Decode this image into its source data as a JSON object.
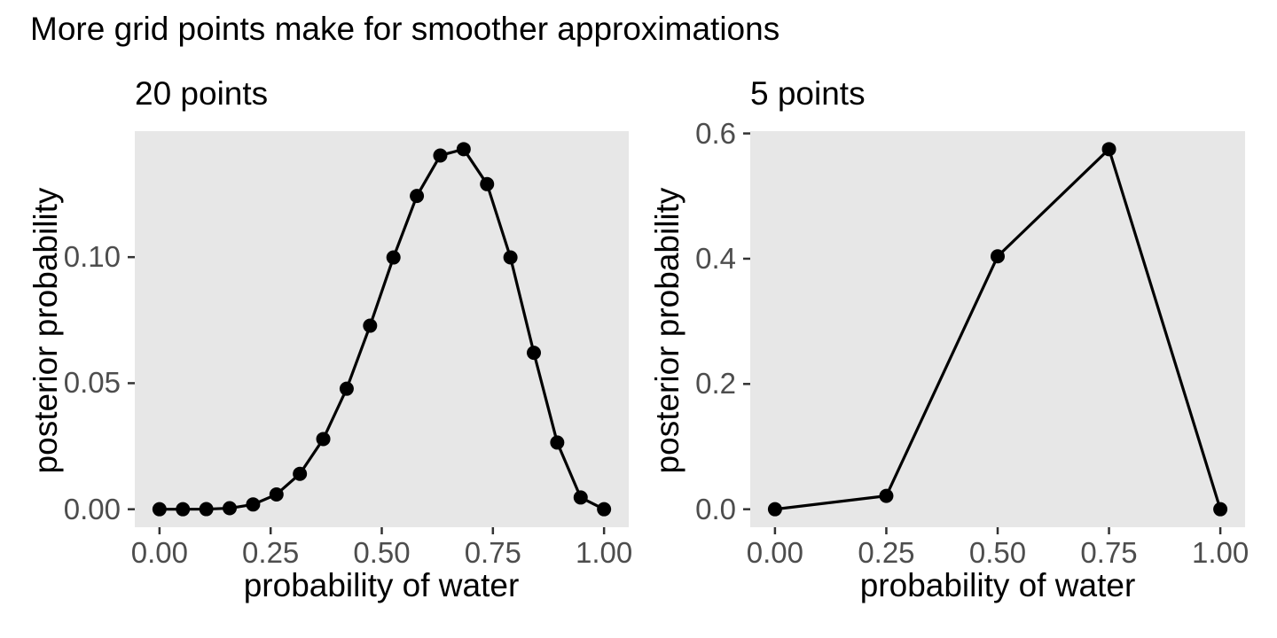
{
  "figure_title": "More grid points make for smoother approximations",
  "style": {
    "page_bg": "#FFFFFF",
    "panel_bg": "#E7E7E7",
    "line_color": "#000000",
    "point_color": "#000000",
    "tick_mark_color": "#333333",
    "tick_label_color": "#4D4D4D",
    "text_color": "#000000"
  },
  "chart_data": [
    {
      "type": "line",
      "title": "20 points",
      "xlabel": "probability of water",
      "ylabel": "posterior probability",
      "grid": "off",
      "legend": "none",
      "marker": "filled-circle",
      "xlim": [
        0,
        1
      ],
      "ylim": [
        0,
        0.142833
      ],
      "x": [
        0,
        0.052632,
        0.105263,
        0.157895,
        0.210526,
        0.263158,
        0.315789,
        0.368421,
        0.421053,
        0.473684,
        0.526316,
        0.578947,
        0.631579,
        0.684211,
        0.736842,
        0.789474,
        0.842105,
        0.894737,
        0.947368,
        1
      ],
      "y": [
        0,
        1e-06,
        4.3e-05,
        0.000409,
        0.001894,
        0.005874,
        0.014043,
        0.027848,
        0.047805,
        0.072808,
        0.099868,
        0.124264,
        0.140317,
        0.142833,
        0.128954,
        0.099884,
        0.062056,
        0.026454,
        0.00466,
        0
      ],
      "x_ticks": {
        "values": [
          0,
          0.25,
          0.5,
          0.75,
          1
        ],
        "labels": [
          "0.00",
          "0.25",
          "0.50",
          "0.75",
          "1.00"
        ]
      },
      "y_ticks": {
        "values": [
          0,
          0.05,
          0.1
        ],
        "labels": [
          "0.00",
          "0.05",
          "0.10"
        ]
      }
    },
    {
      "type": "line",
      "title": "5 points",
      "xlabel": "probability of water",
      "ylabel": "posterior probability",
      "grid": "off",
      "legend": "none",
      "marker": "filled-circle",
      "xlim": [
        0,
        1
      ],
      "ylim": [
        0,
        0.574921
      ],
      "x": [
        0,
        0.25,
        0.5,
        0.75,
        1
      ],
      "y": [
        0,
        0.021293,
        0.403786,
        0.574921,
        0
      ],
      "x_ticks": {
        "values": [
          0,
          0.25,
          0.5,
          0.75,
          1
        ],
        "labels": [
          "0.00",
          "0.25",
          "0.50",
          "0.75",
          "1.00"
        ]
      },
      "y_ticks": {
        "values": [
          0,
          0.2,
          0.4,
          0.6
        ],
        "labels": [
          "0.0",
          "0.2",
          "0.4",
          "0.6"
        ]
      }
    }
  ]
}
